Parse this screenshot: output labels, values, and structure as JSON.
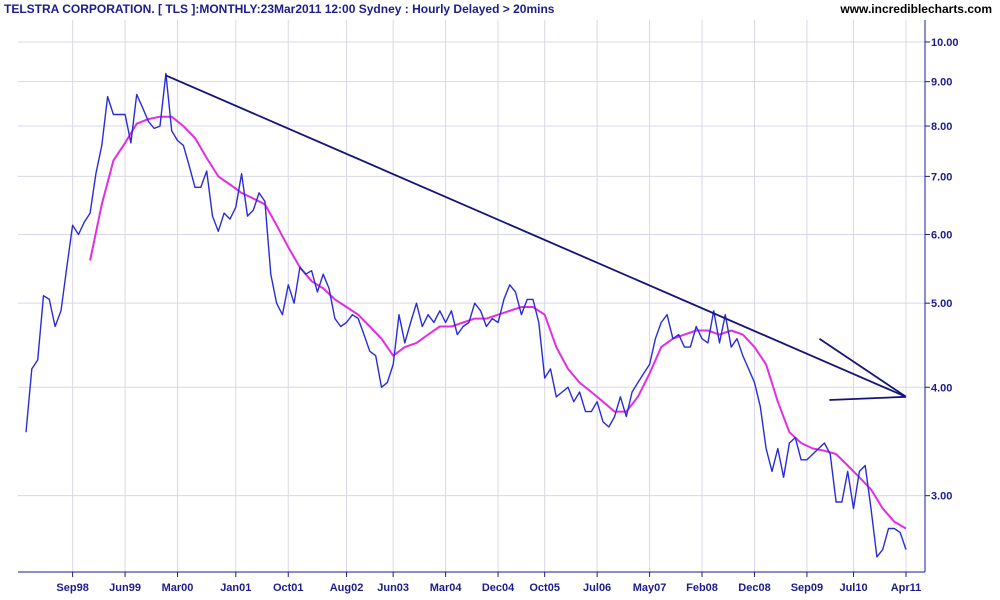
{
  "header": {
    "title": "TELSTRA CORPORATION. [ TLS ]:MONTHLY:23Mar2011 12:00 Sydney : Hourly Delayed > 20mins",
    "site": "www.incrediblecharts.com"
  },
  "colors": {
    "price": "#2b2bd6",
    "moving_average": "#e22ee2",
    "trendline": "#14147a",
    "grid": "#d8d8e8",
    "axis_text": "#1c1c8c"
  },
  "chart_data": {
    "type": "line",
    "log_scale": true,
    "grid": true,
    "x_tick_labels": [
      "Sep98",
      "Jun99",
      "Mar00",
      "Jan01",
      "Oct01",
      "Aug02",
      "Jun03",
      "Mar04",
      "Dec04",
      "Oct05",
      "Jul06",
      "May07",
      "Feb08",
      "Dec08",
      "Sep09",
      "Jul10",
      "Apr11"
    ],
    "y_ticks": [
      3.0,
      4.0,
      5.0,
      6.0,
      7.0,
      8.0,
      9.0,
      10.0
    ],
    "y_tick_labels": [
      "3.00",
      "4.00",
      "5.00",
      "6.00",
      "7.00",
      "8.00",
      "9.00",
      "10.00"
    ],
    "ylim": [
      2.45,
      10.6
    ],
    "price": [
      [
        0,
        3.55
      ],
      [
        1,
        4.2
      ],
      [
        2,
        4.3
      ],
      [
        3,
        5.1
      ],
      [
        4,
        5.05
      ],
      [
        5,
        4.7
      ],
      [
        6,
        4.9
      ],
      [
        7,
        5.5
      ],
      [
        8,
        6.15
      ],
      [
        9,
        6.0
      ],
      [
        10,
        6.2
      ],
      [
        11,
        6.35
      ],
      [
        12,
        7.05
      ],
      [
        13,
        7.6
      ],
      [
        14,
        8.65
      ],
      [
        15,
        8.25
      ],
      [
        16,
        8.25
      ],
      [
        17,
        8.25
      ],
      [
        18,
        7.65
      ],
      [
        19,
        8.7
      ],
      [
        20,
        8.4
      ],
      [
        21,
        8.1
      ],
      [
        22,
        7.95
      ],
      [
        23,
        8.0
      ],
      [
        24,
        9.2
      ],
      [
        25,
        7.9
      ],
      [
        26,
        7.7
      ],
      [
        27,
        7.6
      ],
      [
        28,
        7.2
      ],
      [
        29,
        6.8
      ],
      [
        30,
        6.8
      ],
      [
        31,
        7.1
      ],
      [
        32,
        6.3
      ],
      [
        33,
        6.05
      ],
      [
        34,
        6.35
      ],
      [
        35,
        6.25
      ],
      [
        36,
        6.45
      ],
      [
        37,
        7.05
      ],
      [
        38,
        6.3
      ],
      [
        39,
        6.4
      ],
      [
        40,
        6.7
      ],
      [
        41,
        6.55
      ],
      [
        42,
        5.4
      ],
      [
        43,
        5.0
      ],
      [
        44,
        4.85
      ],
      [
        45,
        5.25
      ],
      [
        46,
        5.0
      ],
      [
        47,
        5.5
      ],
      [
        48,
        5.4
      ],
      [
        49,
        5.45
      ],
      [
        50,
        5.15
      ],
      [
        51,
        5.4
      ],
      [
        52,
        5.2
      ],
      [
        53,
        4.8
      ],
      [
        54,
        4.7
      ],
      [
        55,
        4.75
      ],
      [
        56,
        4.85
      ],
      [
        57,
        4.8
      ],
      [
        58,
        4.6
      ],
      [
        59,
        4.4
      ],
      [
        60,
        4.35
      ],
      [
        61,
        4.0
      ],
      [
        62,
        4.05
      ],
      [
        63,
        4.25
      ],
      [
        64,
        4.85
      ],
      [
        65,
        4.5
      ],
      [
        66,
        4.75
      ],
      [
        67,
        5.0
      ],
      [
        68,
        4.7
      ],
      [
        69,
        4.85
      ],
      [
        70,
        4.75
      ],
      [
        71,
        4.9
      ],
      [
        72,
        4.75
      ],
      [
        73,
        4.9
      ],
      [
        74,
        4.6
      ],
      [
        75,
        4.7
      ],
      [
        76,
        4.75
      ],
      [
        77,
        5.0
      ],
      [
        78,
        4.9
      ],
      [
        79,
        4.7
      ],
      [
        80,
        4.8
      ],
      [
        81,
        4.75
      ],
      [
        82,
        5.05
      ],
      [
        83,
        5.25
      ],
      [
        84,
        5.15
      ],
      [
        85,
        4.85
      ],
      [
        86,
        5.05
      ],
      [
        87,
        5.05
      ],
      [
        88,
        4.75
      ],
      [
        89,
        4.1
      ],
      [
        90,
        4.2
      ],
      [
        91,
        3.9
      ],
      [
        92,
        3.95
      ],
      [
        93,
        4.0
      ],
      [
        94,
        3.85
      ],
      [
        95,
        3.95
      ],
      [
        96,
        3.75
      ],
      [
        97,
        3.75
      ],
      [
        98,
        3.85
      ],
      [
        99,
        3.65
      ],
      [
        100,
        3.6
      ],
      [
        101,
        3.7
      ],
      [
        102,
        3.9
      ],
      [
        103,
        3.7
      ],
      [
        104,
        3.95
      ],
      [
        105,
        4.05
      ],
      [
        106,
        4.15
      ],
      [
        107,
        4.25
      ],
      [
        108,
        4.55
      ],
      [
        109,
        4.75
      ],
      [
        110,
        4.85
      ],
      [
        111,
        4.55
      ],
      [
        112,
        4.6
      ],
      [
        113,
        4.45
      ],
      [
        114,
        4.45
      ],
      [
        115,
        4.7
      ],
      [
        116,
        4.55
      ],
      [
        117,
        4.5
      ],
      [
        118,
        4.9
      ],
      [
        119,
        4.5
      ],
      [
        120,
        4.85
      ],
      [
        121,
        4.45
      ],
      [
        122,
        4.55
      ],
      [
        123,
        4.35
      ],
      [
        124,
        4.2
      ],
      [
        125,
        4.05
      ],
      [
        126,
        3.8
      ],
      [
        127,
        3.4
      ],
      [
        128,
        3.2
      ],
      [
        129,
        3.4
      ],
      [
        130,
        3.15
      ],
      [
        131,
        3.45
      ],
      [
        132,
        3.5
      ],
      [
        133,
        3.3
      ],
      [
        134,
        3.3
      ],
      [
        135,
        3.35
      ],
      [
        136,
        3.4
      ],
      [
        137,
        3.45
      ],
      [
        138,
        3.35
      ],
      [
        139,
        2.95
      ],
      [
        140,
        2.95
      ],
      [
        141,
        3.2
      ],
      [
        142,
        2.9
      ],
      [
        143,
        3.2
      ],
      [
        144,
        3.25
      ],
      [
        145,
        2.9
      ],
      [
        146,
        2.55
      ],
      [
        147,
        2.6
      ],
      [
        148,
        2.75
      ],
      [
        149,
        2.75
      ],
      [
        150,
        2.72
      ],
      [
        151,
        2.6
      ]
    ],
    "moving_average": [
      [
        11,
        5.6
      ],
      [
        13,
        6.5
      ],
      [
        15,
        7.3
      ],
      [
        17,
        7.65
      ],
      [
        19,
        8.05
      ],
      [
        21,
        8.15
      ],
      [
        23,
        8.2
      ],
      [
        25,
        8.2
      ],
      [
        27,
        8.0
      ],
      [
        29,
        7.75
      ],
      [
        31,
        7.35
      ],
      [
        33,
        7.0
      ],
      [
        35,
        6.85
      ],
      [
        37,
        6.7
      ],
      [
        39,
        6.6
      ],
      [
        41,
        6.5
      ],
      [
        43,
        6.15
      ],
      [
        45,
        5.8
      ],
      [
        47,
        5.5
      ],
      [
        49,
        5.3
      ],
      [
        51,
        5.2
      ],
      [
        53,
        5.05
      ],
      [
        55,
        4.95
      ],
      [
        57,
        4.85
      ],
      [
        59,
        4.7
      ],
      [
        61,
        4.55
      ],
      [
        63,
        4.35
      ],
      [
        65,
        4.45
      ],
      [
        67,
        4.5
      ],
      [
        69,
        4.6
      ],
      [
        71,
        4.7
      ],
      [
        73,
        4.7
      ],
      [
        75,
        4.75
      ],
      [
        77,
        4.8
      ],
      [
        79,
        4.8
      ],
      [
        81,
        4.85
      ],
      [
        83,
        4.9
      ],
      [
        85,
        4.95
      ],
      [
        87,
        4.95
      ],
      [
        89,
        4.85
      ],
      [
        91,
        4.45
      ],
      [
        93,
        4.2
      ],
      [
        95,
        4.05
      ],
      [
        97,
        3.95
      ],
      [
        99,
        3.85
      ],
      [
        101,
        3.75
      ],
      [
        103,
        3.75
      ],
      [
        105,
        3.9
      ],
      [
        107,
        4.15
      ],
      [
        109,
        4.45
      ],
      [
        111,
        4.55
      ],
      [
        113,
        4.6
      ],
      [
        115,
        4.65
      ],
      [
        117,
        4.65
      ],
      [
        119,
        4.6
      ],
      [
        121,
        4.65
      ],
      [
        123,
        4.6
      ],
      [
        125,
        4.45
      ],
      [
        127,
        4.25
      ],
      [
        129,
        3.85
      ],
      [
        131,
        3.55
      ],
      [
        133,
        3.45
      ],
      [
        135,
        3.4
      ],
      [
        137,
        3.38
      ],
      [
        139,
        3.35
      ],
      [
        141,
        3.25
      ],
      [
        143,
        3.15
      ],
      [
        145,
        3.05
      ],
      [
        147,
        2.9
      ],
      [
        149,
        2.8
      ],
      [
        151,
        2.75
      ]
    ],
    "trendline": [
      [
        24,
        9.15
      ],
      [
        151,
        3.9
      ]
    ],
    "arrow_from": [
      [
        143,
        3.95
      ],
      [
        138,
        4.05
      ]
    ],
    "x_ticks": [
      [
        8,
        "Sep98"
      ],
      [
        17,
        "Jun99"
      ],
      [
        26,
        "Mar00"
      ],
      [
        36,
        "Jan01"
      ],
      [
        45,
        "Oct01"
      ],
      [
        55,
        "Aug02"
      ],
      [
        63,
        "Jun03"
      ],
      [
        72,
        "Mar04"
      ],
      [
        81,
        "Dec04"
      ],
      [
        89,
        "Oct05"
      ],
      [
        98,
        "Jul06"
      ],
      [
        107,
        "May07"
      ],
      [
        116,
        "Feb08"
      ],
      [
        125,
        "Dec08"
      ],
      [
        134,
        "Sep09"
      ],
      [
        142,
        "Jul10"
      ],
      [
        151,
        "Apr11"
      ]
    ],
    "arrow_extra": [
      [
        137,
        4.55
      ]
    ]
  }
}
